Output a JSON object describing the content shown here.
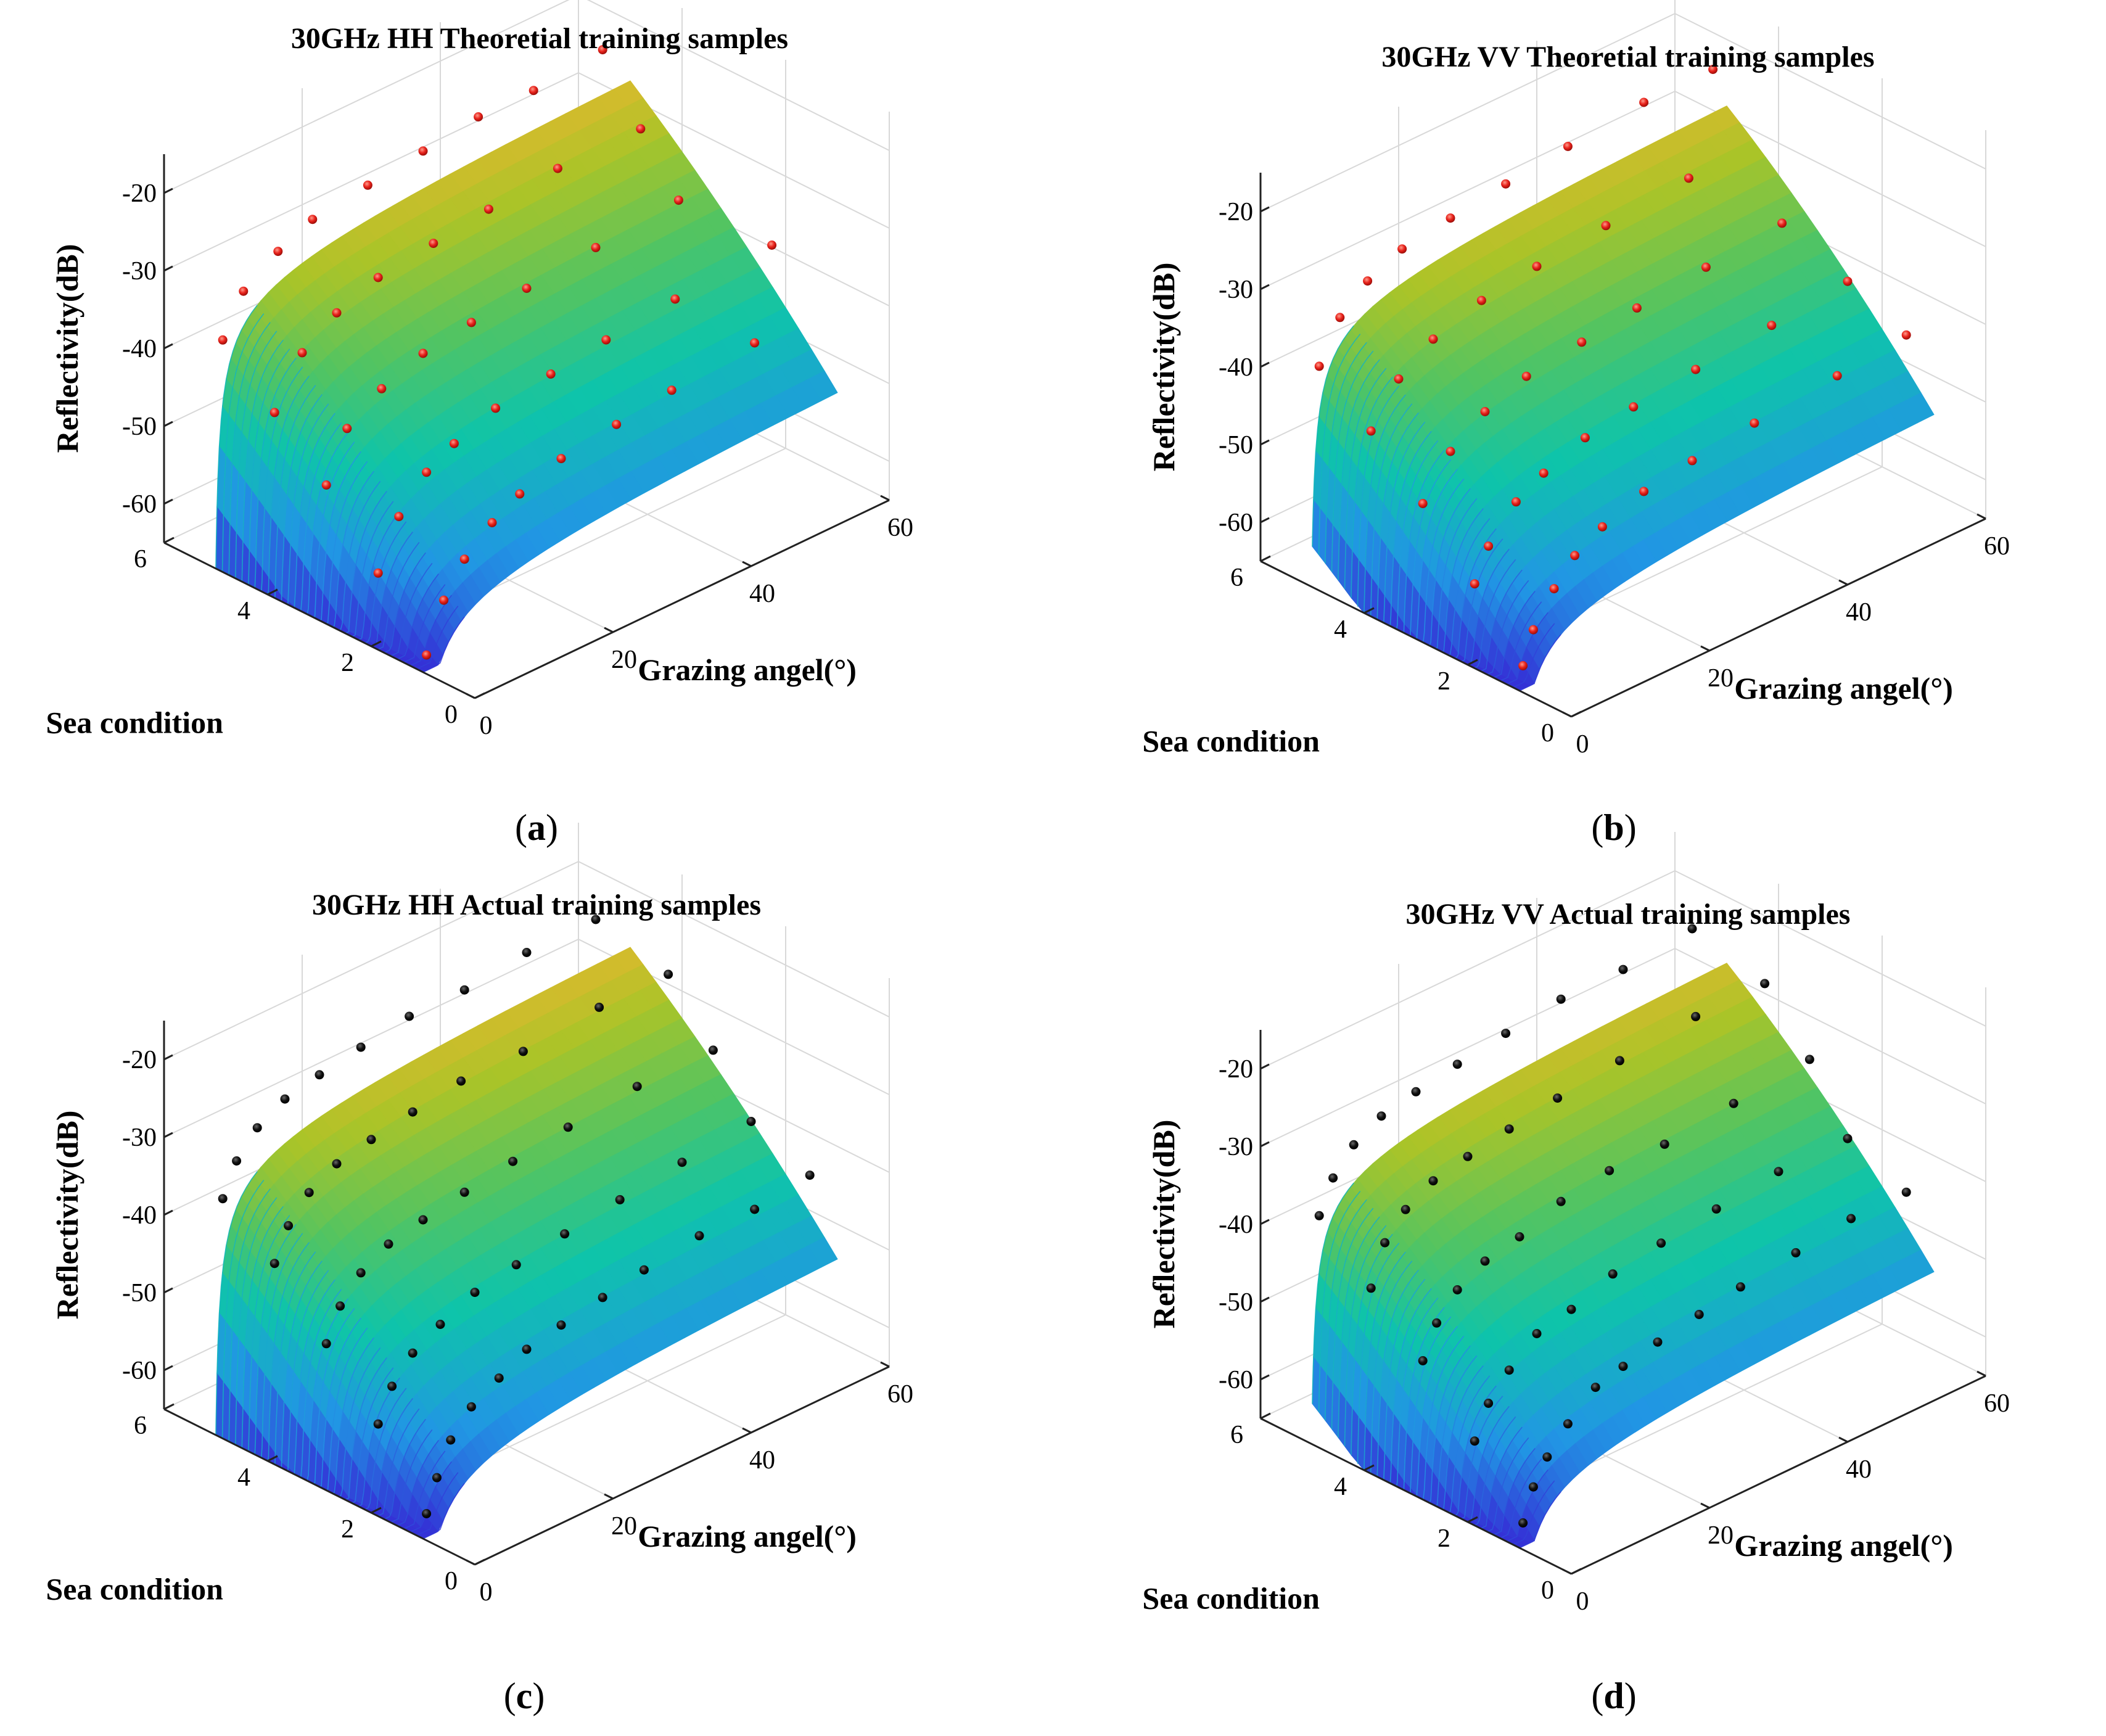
{
  "figure": {
    "captions": [
      "(a)",
      "(b)",
      "(c)",
      "(d)"
    ],
    "caption_open": "(",
    "caption_close": ")",
    "caption_letters": [
      "a",
      "b",
      "c",
      "d"
    ]
  },
  "colors": {
    "low": "#3b4bd6",
    "mid_low": "#22a8e0",
    "mid": "#16c69a",
    "mid_high": "#a6c72a",
    "high": "#f6b630",
    "top": "#fde115",
    "theoretical_marker": "#e8221b",
    "actual_marker": "#111111"
  },
  "chart_data": [
    {
      "type": "surface3d",
      "panel": "a",
      "title": "30GHz HH Theoretial training samples",
      "xlabel": "Grazing angel(°)",
      "ylabel": "Sea condition",
      "zlabel": "Reflectivity(dB)",
      "xlim": [
        0,
        60
      ],
      "ylim": [
        0,
        6
      ],
      "zlim": [
        -65,
        -15
      ],
      "xticks": [
        0,
        20,
        40,
        60
      ],
      "yticks": [
        0,
        2,
        4,
        6
      ],
      "zticks": [
        -20,
        -30,
        -40,
        -50,
        -60
      ],
      "sea_levels": [
        1,
        2,
        3,
        4,
        5
      ],
      "model": {
        "base": -26,
        "sea_step": 5.5,
        "sea_quad": 0.6,
        "curve": 22,
        "eps": 0.3
      },
      "samples": {
        "kind": "theoretical",
        "points": [
          [
            0.5,
            1,
            -63
          ],
          [
            3,
            1,
            -57
          ],
          [
            6,
            1,
            -53
          ],
          [
            10,
            1,
            -50
          ],
          [
            14,
            1,
            -48
          ],
          [
            20,
            1,
            -46
          ],
          [
            28,
            1,
            -45
          ],
          [
            36,
            1,
            -44
          ],
          [
            48,
            1,
            -43
          ],
          [
            1,
            2,
            -56
          ],
          [
            4,
            2,
            -50
          ],
          [
            8,
            2,
            -46
          ],
          [
            12,
            2,
            -44
          ],
          [
            18,
            2,
            -42
          ],
          [
            26,
            2,
            -41
          ],
          [
            34,
            2,
            -40
          ],
          [
            44,
            2,
            -39
          ],
          [
            58,
            2,
            -38
          ],
          [
            1,
            3,
            -48
          ],
          [
            4,
            3,
            -42
          ],
          [
            9,
            3,
            -39
          ],
          [
            15,
            3,
            -37
          ],
          [
            22,
            3,
            -36
          ],
          [
            30,
            3,
            -35
          ],
          [
            40,
            3,
            -34
          ],
          [
            52,
            3,
            -33
          ],
          [
            1,
            4,
            -42
          ],
          [
            5,
            4,
            -36
          ],
          [
            10,
            4,
            -33
          ],
          [
            16,
            4,
            -31
          ],
          [
            24,
            4,
            -30
          ],
          [
            32,
            4,
            -29
          ],
          [
            42,
            4,
            -28
          ],
          [
            54,
            4,
            -28
          ],
          [
            1,
            5,
            -36
          ],
          [
            4,
            5,
            -31
          ],
          [
            9,
            5,
            -28
          ],
          [
            14,
            5,
            -26
          ],
          [
            22,
            5,
            -25
          ],
          [
            30,
            5,
            -24
          ],
          [
            38,
            5,
            -23
          ],
          [
            46,
            5,
            -23
          ],
          [
            56,
            5,
            -22
          ]
        ]
      }
    },
    {
      "type": "surface3d",
      "panel": "b",
      "title": "30GHz VV Theoretial training samples",
      "xlabel": "Grazing angel(°)",
      "ylabel": "Sea condition",
      "zlabel": "Reflectivity(dB)",
      "xlim": [
        0,
        60
      ],
      "ylim": [
        0,
        6
      ],
      "zlim": [
        -65,
        -15
      ],
      "xticks": [
        0,
        20,
        40,
        60
      ],
      "yticks": [
        0,
        2,
        4,
        6
      ],
      "zticks": [
        -20,
        -30,
        -40,
        -50,
        -60
      ],
      "sea_levels": [
        1,
        2,
        3,
        4,
        5
      ],
      "model": {
        "base": -27,
        "sea_step": 5.2,
        "sea_quad": 0.7,
        "curve": 20,
        "eps": 0.35
      },
      "samples": {
        "kind": "theoretical",
        "points": [
          [
            0.5,
            1,
            -62
          ],
          [
            2,
            1,
            -58
          ],
          [
            5,
            1,
            -54
          ],
          [
            8,
            1,
            -51
          ],
          [
            12,
            1,
            -49
          ],
          [
            18,
            1,
            -47
          ],
          [
            25,
            1,
            -46
          ],
          [
            34,
            1,
            -45
          ],
          [
            46,
            1,
            -44
          ],
          [
            56,
            1,
            -43
          ],
          [
            1,
            2,
            -55
          ],
          [
            3,
            2,
            -51
          ],
          [
            7,
            2,
            -47
          ],
          [
            11,
            2,
            -45
          ],
          [
            17,
            2,
            -43
          ],
          [
            24,
            2,
            -42
          ],
          [
            33,
            2,
            -41
          ],
          [
            44,
            2,
            -40
          ],
          [
            55,
            2,
            -39
          ],
          [
            1,
            3,
            -48
          ],
          [
            5,
            3,
            -43
          ],
          [
            10,
            3,
            -40
          ],
          [
            16,
            3,
            -38
          ],
          [
            24,
            3,
            -37
          ],
          [
            32,
            3,
            -36
          ],
          [
            42,
            3,
            -35
          ],
          [
            53,
            3,
            -34
          ],
          [
            1,
            4,
            -42
          ],
          [
            5,
            4,
            -37
          ],
          [
            10,
            4,
            -34
          ],
          [
            17,
            4,
            -32
          ],
          [
            25,
            4,
            -31
          ],
          [
            35,
            4,
            -30
          ],
          [
            47,
            4,
            -29
          ],
          [
            1,
            5,
            -37
          ],
          [
            4,
            5,
            -32
          ],
          [
            8,
            5,
            -29
          ],
          [
            13,
            5,
            -27
          ],
          [
            20,
            5,
            -26
          ],
          [
            28,
            5,
            -25
          ],
          [
            37,
            5,
            -24
          ],
          [
            48,
            5,
            -23
          ],
          [
            58,
            5,
            -23
          ]
        ]
      }
    },
    {
      "type": "surface3d",
      "panel": "c",
      "title": "30GHz HH Actual training samples",
      "xlabel": "Grazing angel(°)",
      "ylabel": "Sea condition",
      "zlabel": "Reflectivity(dB)",
      "xlim": [
        0,
        60
      ],
      "ylim": [
        0,
        6
      ],
      "zlim": [
        -65,
        -15
      ],
      "xticks": [
        0,
        20,
        40,
        60
      ],
      "yticks": [
        0,
        2,
        4,
        6
      ],
      "zticks": [
        -20,
        -30,
        -40,
        -50,
        -60
      ],
      "sea_levels": [
        1,
        2,
        3,
        4,
        5
      ],
      "model": {
        "base": -26,
        "sea_step": 5.5,
        "sea_quad": 0.6,
        "curve": 22,
        "eps": 0.3
      },
      "samples": {
        "kind": "actual",
        "points": [
          [
            0.5,
            1,
            -62
          ],
          [
            2,
            1,
            -58
          ],
          [
            4,
            1,
            -54
          ],
          [
            7,
            1,
            -51
          ],
          [
            11,
            1,
            -49
          ],
          [
            15,
            1,
            -47
          ],
          [
            20,
            1,
            -46
          ],
          [
            26,
            1,
            -45
          ],
          [
            32,
            1,
            -44
          ],
          [
            40,
            1,
            -43
          ],
          [
            48,
            1,
            -43
          ],
          [
            56,
            1,
            -42
          ],
          [
            1,
            2,
            -54
          ],
          [
            3,
            2,
            -50
          ],
          [
            6,
            2,
            -47
          ],
          [
            10,
            2,
            -45
          ],
          [
            15,
            2,
            -43
          ],
          [
            21,
            2,
            -42
          ],
          [
            28,
            2,
            -41
          ],
          [
            36,
            2,
            -40
          ],
          [
            45,
            2,
            -39
          ],
          [
            55,
            2,
            -38
          ],
          [
            1,
            3,
            -47
          ],
          [
            3,
            3,
            -43
          ],
          [
            6,
            3,
            -40
          ],
          [
            10,
            3,
            -38
          ],
          [
            15,
            3,
            -37
          ],
          [
            21,
            3,
            -36
          ],
          [
            28,
            3,
            -35
          ],
          [
            36,
            3,
            -34
          ],
          [
            46,
            3,
            -33
          ],
          [
            57,
            3,
            -33
          ],
          [
            1,
            4,
            -40
          ],
          [
            3,
            4,
            -36
          ],
          [
            6,
            4,
            -33
          ],
          [
            10,
            4,
            -31
          ],
          [
            15,
            4,
            -30
          ],
          [
            21,
            4,
            -29
          ],
          [
            28,
            4,
            -28
          ],
          [
            37,
            4,
            -28
          ],
          [
            48,
            4,
            -27
          ],
          [
            58,
            4,
            -27
          ],
          [
            1,
            5,
            -35
          ],
          [
            3,
            5,
            -31
          ],
          [
            6,
            5,
            -28
          ],
          [
            10,
            5,
            -26
          ],
          [
            15,
            5,
            -25
          ],
          [
            21,
            5,
            -24
          ],
          [
            28,
            5,
            -23
          ],
          [
            36,
            5,
            -23
          ],
          [
            45,
            5,
            -22
          ],
          [
            55,
            5,
            -22
          ]
        ]
      }
    },
    {
      "type": "surface3d",
      "panel": "d",
      "title": "30GHz VV Actual training samples",
      "xlabel": "Grazing angel(°)",
      "ylabel": "Sea condition",
      "zlabel": "Reflectivity(dB)",
      "xlim": [
        0,
        60
      ],
      "ylim": [
        0,
        6
      ],
      "zlim": [
        -65,
        -15
      ],
      "xticks": [
        0,
        20,
        40,
        60
      ],
      "yticks": [
        0,
        2,
        4,
        6
      ],
      "zticks": [
        -20,
        -30,
        -40,
        -50,
        -60
      ],
      "sea_levels": [
        1,
        2,
        3,
        4,
        5
      ],
      "model": {
        "base": -27,
        "sea_step": 5.2,
        "sea_quad": 0.7,
        "curve": 20,
        "eps": 0.35
      },
      "samples": {
        "kind": "actual",
        "points": [
          [
            0.5,
            1,
            -62
          ],
          [
            2,
            1,
            -58
          ],
          [
            4,
            1,
            -55
          ],
          [
            7,
            1,
            -52
          ],
          [
            11,
            1,
            -49
          ],
          [
            15,
            1,
            -48
          ],
          [
            20,
            1,
            -47
          ],
          [
            26,
            1,
            -46
          ],
          [
            32,
            1,
            -45
          ],
          [
            40,
            1,
            -44
          ],
          [
            48,
            1,
            -43
          ],
          [
            56,
            1,
            -43
          ],
          [
            1,
            2,
            -55
          ],
          [
            3,
            2,
            -51
          ],
          [
            6,
            2,
            -48
          ],
          [
            10,
            2,
            -45
          ],
          [
            15,
            2,
            -44
          ],
          [
            21,
            2,
            -42
          ],
          [
            28,
            2,
            -41
          ],
          [
            36,
            2,
            -40
          ],
          [
            45,
            2,
            -39
          ],
          [
            55,
            2,
            -39
          ],
          [
            1,
            3,
            -48
          ],
          [
            3,
            3,
            -44
          ],
          [
            6,
            3,
            -41
          ],
          [
            10,
            3,
            -39
          ],
          [
            15,
            3,
            -38
          ],
          [
            21,
            3,
            -36
          ],
          [
            28,
            3,
            -35
          ],
          [
            36,
            3,
            -35
          ],
          [
            46,
            3,
            -34
          ],
          [
            57,
            3,
            -33
          ],
          [
            1,
            4,
            -42
          ],
          [
            3,
            4,
            -37
          ],
          [
            6,
            4,
            -34
          ],
          [
            10,
            4,
            -32
          ],
          [
            15,
            4,
            -31
          ],
          [
            21,
            4,
            -30
          ],
          [
            28,
            4,
            -29
          ],
          [
            37,
            4,
            -28
          ],
          [
            48,
            4,
            -27
          ],
          [
            58,
            4,
            -27
          ],
          [
            1,
            5,
            -36
          ],
          [
            3,
            5,
            -32
          ],
          [
            6,
            5,
            -29
          ],
          [
            10,
            5,
            -27
          ],
          [
            15,
            5,
            -26
          ],
          [
            21,
            5,
            -25
          ],
          [
            28,
            5,
            -24
          ],
          [
            36,
            5,
            -23
          ],
          [
            45,
            5,
            -23
          ],
          [
            55,
            5,
            -22
          ]
        ]
      }
    }
  ]
}
